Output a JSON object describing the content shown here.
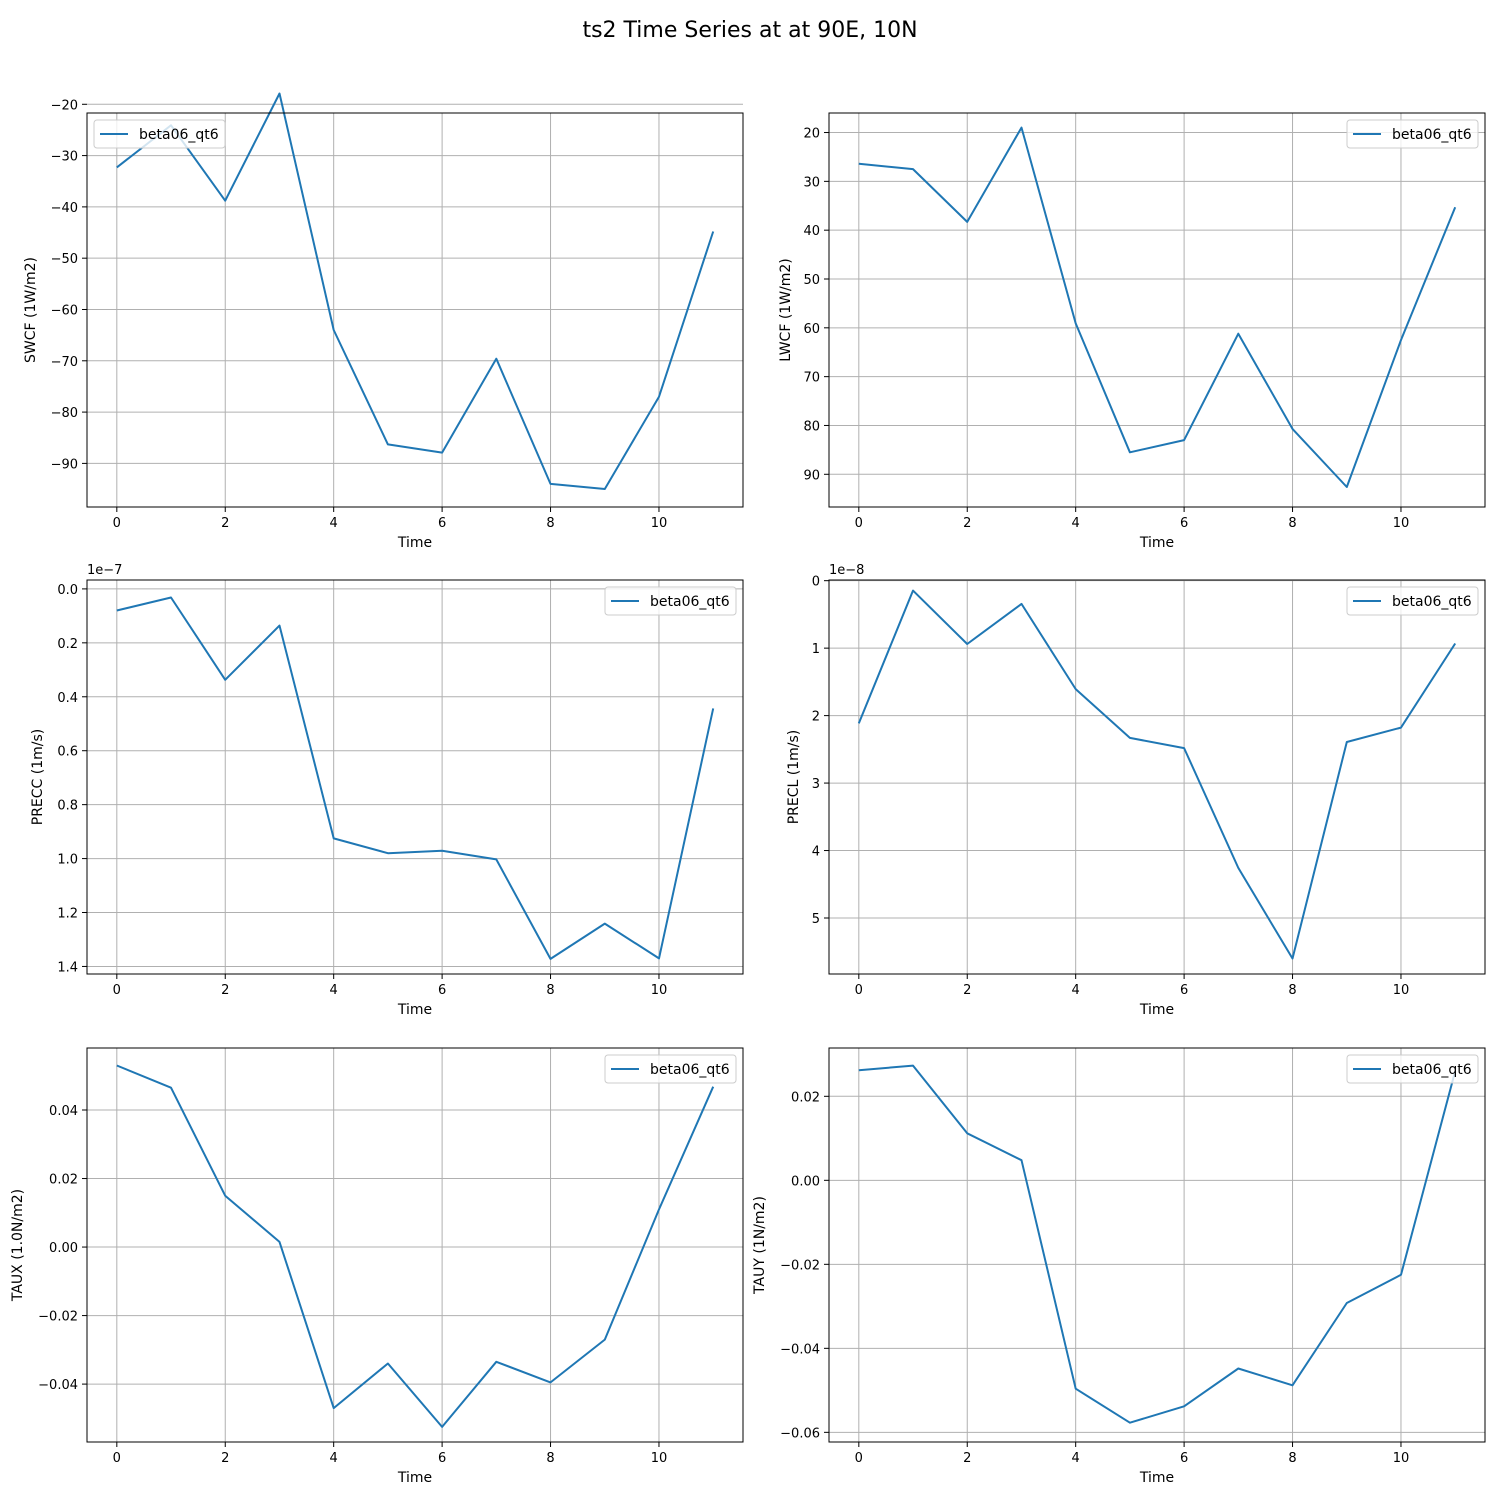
{
  "figure": {
    "suptitle": "ts2 Time Series at at 90E, 10N",
    "line_color": "#1f77b4",
    "grid_color": "#b0b0b0"
  },
  "chart_data": [
    {
      "type": "line",
      "xlabel": "Time",
      "ylabel": "SWCF (1W/m2)",
      "xlim": [
        -0.55,
        11.55
      ],
      "ylim": [
        -21.7,
        -98.5
      ],
      "y_inverted": true,
      "xticks": [
        0,
        2,
        4,
        6,
        8,
        10
      ],
      "yticks": [
        -20,
        -30,
        -40,
        -50,
        -60,
        -70,
        -80,
        -90
      ],
      "ytick_labels": [
        "−20",
        "−30",
        "−40",
        "−50",
        "−60",
        "−70",
        "−80",
        "−90"
      ],
      "offset_text": "",
      "legend_loc": "upper left",
      "grid": true,
      "series": [
        {
          "name": "beta06_qt6",
          "x": [
            0,
            1,
            2,
            3,
            4,
            5,
            6,
            7,
            8,
            9,
            10,
            11
          ],
          "values": [
            -32.3,
            -24.1,
            -38.8,
            -17.9,
            -64.0,
            -86.3,
            -87.9,
            -69.6,
            -94.0,
            -95.0,
            -77.0,
            -44.8
          ]
        }
      ]
    },
    {
      "type": "line",
      "xlabel": "Time",
      "ylabel": "LWCF (1W/m2)",
      "xlim": [
        -0.55,
        11.55
      ],
      "ylim": [
        16.0,
        96.7
      ],
      "y_inverted": true,
      "xticks": [
        0,
        2,
        4,
        6,
        8,
        10
      ],
      "yticks": [
        20,
        30,
        40,
        50,
        60,
        70,
        80,
        90
      ],
      "ytick_labels": [
        "20",
        "30",
        "40",
        "50",
        "60",
        "70",
        "80",
        "90"
      ],
      "offset_text": "",
      "legend_loc": "upper right",
      "grid": true,
      "series": [
        {
          "name": "beta06_qt6",
          "x": [
            0,
            1,
            2,
            3,
            4,
            5,
            6,
            7,
            8,
            9,
            10,
            11
          ],
          "values": [
            26.4,
            27.5,
            38.3,
            19.0,
            59.1,
            85.5,
            83.0,
            61.2,
            80.7,
            92.6,
            62.5,
            35.3
          ]
        }
      ]
    },
    {
      "type": "line",
      "xlabel": "Time",
      "ylabel": "PRECC (1m/s)",
      "xlim": [
        -0.55,
        11.55
      ],
      "ylim": [
        -0.033,
        1.428
      ],
      "y_inverted": true,
      "xticks": [
        0,
        2,
        4,
        6,
        8,
        10
      ],
      "yticks": [
        0.0,
        0.2,
        0.4,
        0.6,
        0.8,
        1.0,
        1.2,
        1.4
      ],
      "ytick_labels": [
        "0.0",
        "0.2",
        "0.4",
        "0.6",
        "0.8",
        "1.0",
        "1.2",
        "1.4"
      ],
      "offset_text": "1e−7",
      "legend_loc": "upper right",
      "grid": true,
      "series": [
        {
          "name": "beta06_qt6",
          "x": [
            0,
            1,
            2,
            3,
            4,
            5,
            6,
            7,
            8,
            9,
            10,
            11
          ],
          "values": [
            0.08,
            0.032,
            0.337,
            0.136,
            0.925,
            0.98,
            0.971,
            1.003,
            1.372,
            1.241,
            1.37,
            0.443
          ]
        }
      ]
    },
    {
      "type": "line",
      "xlabel": "Time",
      "ylabel": "PRECL (1m/s)",
      "xlim": [
        -0.55,
        11.55
      ],
      "ylim": [
        -0.01,
        5.83
      ],
      "y_inverted": true,
      "xticks": [
        0,
        2,
        4,
        6,
        8,
        10
      ],
      "yticks": [
        0,
        1,
        2,
        3,
        4,
        5
      ],
      "ytick_labels": [
        "0",
        "1",
        "2",
        "3",
        "4",
        "5"
      ],
      "offset_text": "1e−8",
      "legend_loc": "upper right",
      "grid": true,
      "series": [
        {
          "name": "beta06_qt6",
          "x": [
            0,
            1,
            2,
            3,
            4,
            5,
            6,
            7,
            8,
            9,
            10,
            11
          ],
          "values": [
            2.116,
            0.147,
            0.938,
            0.344,
            1.607,
            2.33,
            2.482,
            4.257,
            5.6,
            2.391,
            2.178,
            0.931
          ]
        }
      ]
    },
    {
      "type": "line",
      "xlabel": "Time",
      "ylabel": "TAUX (1.0N/m2)",
      "xlim": [
        -0.55,
        11.55
      ],
      "ylim": [
        0.0581,
        -0.0569
      ],
      "y_inverted": true,
      "xticks": [
        0,
        2,
        4,
        6,
        8,
        10
      ],
      "yticks": [
        -0.04,
        -0.02,
        0.0,
        0.02,
        0.04
      ],
      "ytick_labels": [
        "−0.04",
        "−0.02",
        "0.00",
        "0.02",
        "0.04"
      ],
      "offset_text": "",
      "legend_loc": "upper right",
      "grid": true,
      "series": [
        {
          "name": "beta06_qt6",
          "x": [
            0,
            1,
            2,
            3,
            4,
            5,
            6,
            7,
            8,
            9,
            10,
            11
          ],
          "values": [
            0.053,
            0.0465,
            0.015,
            0.0015,
            -0.047,
            -0.034,
            -0.0525,
            -0.0335,
            -0.0395,
            -0.027,
            0.011,
            0.0468
          ]
        }
      ]
    },
    {
      "type": "line",
      "xlabel": "Time",
      "ylabel": "TAUY (1N/m2)",
      "xlim": [
        -0.55,
        11.55
      ],
      "ylim": [
        0.0315,
        -0.0623
      ],
      "y_inverted": true,
      "xticks": [
        0,
        2,
        4,
        6,
        8,
        10
      ],
      "yticks": [
        -0.06,
        -0.04,
        -0.02,
        0.0,
        0.02
      ],
      "ytick_labels": [
        "−0.06",
        "−0.04",
        "−0.02",
        "0.00",
        "0.02"
      ],
      "offset_text": "",
      "legend_loc": "upper right",
      "grid": true,
      "series": [
        {
          "name": "beta06_qt6",
          "x": [
            0,
            1,
            2,
            3,
            4,
            5,
            6,
            7,
            8,
            9,
            10,
            11
          ],
          "values": [
            0.0262,
            0.0273,
            0.0112,
            0.0048,
            -0.0496,
            -0.0577,
            -0.0538,
            -0.0448,
            -0.0488,
            -0.0292,
            -0.0225,
            0.026
          ]
        }
      ]
    }
  ]
}
